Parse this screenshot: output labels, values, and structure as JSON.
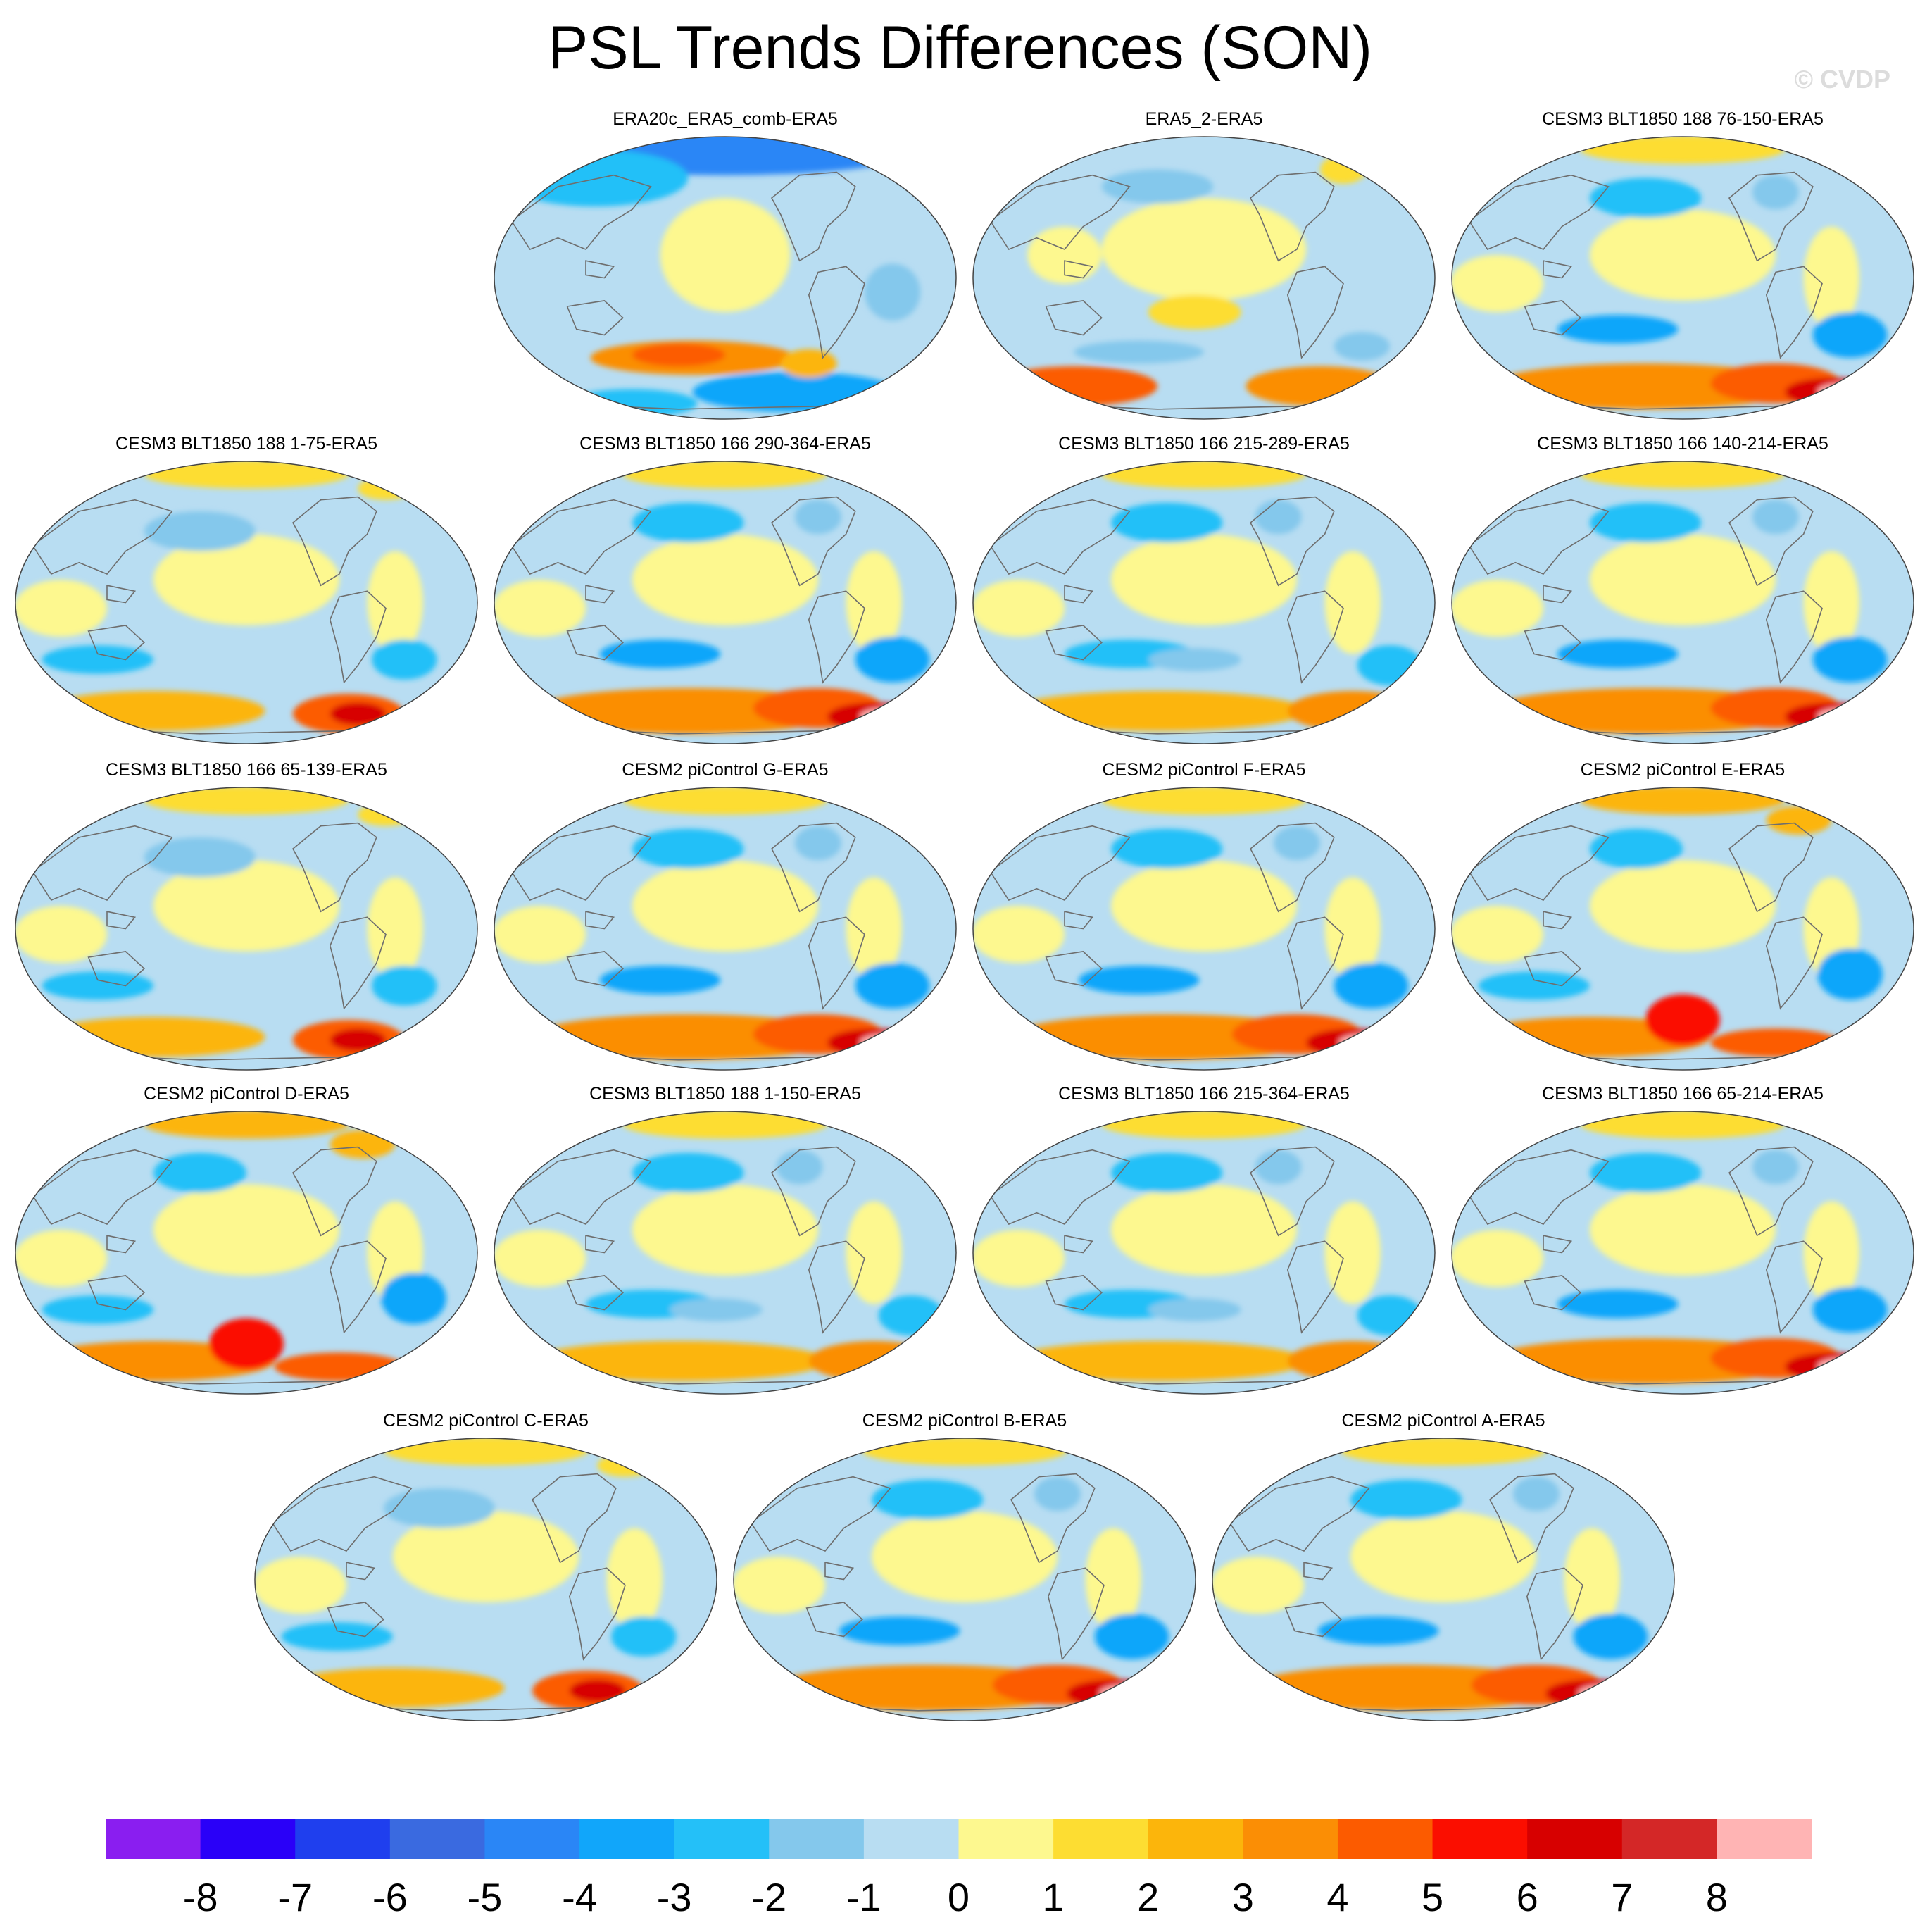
{
  "title": "PSL Trends Differences (SON)",
  "watermark": "© CVDP",
  "chart_data": {
    "type": "heatmap",
    "variable": "PSL",
    "season": "SON",
    "description": "Global maps of sea level pressure trend differences relative to ERA5",
    "panels": [
      {
        "row": 0,
        "col": 1,
        "title": "ERA20c_ERA5_comb-ERA5",
        "pattern": "era20c"
      },
      {
        "row": 0,
        "col": 2,
        "title": "ERA5_2-ERA5",
        "pattern": "era5_2"
      },
      {
        "row": 0,
        "col": 3,
        "title": "CESM3 BLT1850 188 76-150-ERA5",
        "pattern": "model_strong"
      },
      {
        "row": 1,
        "col": 0,
        "title": "CESM3 BLT1850 188 1-75-ERA5",
        "pattern": "model_eastmax"
      },
      {
        "row": 1,
        "col": 1,
        "title": "CESM3 BLT1850 166 290-364-ERA5",
        "pattern": "model_strong"
      },
      {
        "row": 1,
        "col": 2,
        "title": "CESM3 BLT1850 166 215-289-ERA5",
        "pattern": "model"
      },
      {
        "row": 1,
        "col": 3,
        "title": "CESM3 BLT1850 166 140-214-ERA5",
        "pattern": "model_strong"
      },
      {
        "row": 2,
        "col": 0,
        "title": "CESM3 BLT1850 166 65-139-ERA5",
        "pattern": "model_eastmax"
      },
      {
        "row": 2,
        "col": 1,
        "title": "CESM2 piControl G-ERA5",
        "pattern": "model_strong"
      },
      {
        "row": 2,
        "col": 2,
        "title": "CESM2 piControl F-ERA5",
        "pattern": "model_strong"
      },
      {
        "row": 2,
        "col": 3,
        "title": "CESM2 piControl E-ERA5",
        "pattern": "model_central"
      },
      {
        "row": 3,
        "col": 0,
        "title": "CESM2 piControl D-ERA5",
        "pattern": "model_central"
      },
      {
        "row": 3,
        "col": 1,
        "title": "CESM3 BLT1850 188 1-150-ERA5",
        "pattern": "model"
      },
      {
        "row": 3,
        "col": 2,
        "title": "CESM3 BLT1850 166 215-364-ERA5",
        "pattern": "model"
      },
      {
        "row": 3,
        "col": 3,
        "title": "CESM3 BLT1850 166 65-214-ERA5",
        "pattern": "model_strong"
      },
      {
        "row": 4,
        "col": 0.5,
        "title": "CESM2 piControl C-ERA5",
        "pattern": "model_eastmax"
      },
      {
        "row": 4,
        "col": 1.5,
        "title": "CESM2 piControl B-ERA5",
        "pattern": "model_strong"
      },
      {
        "row": 4,
        "col": 2.5,
        "title": "CESM2 piControl A-ERA5",
        "pattern": "model_strong"
      }
    ],
    "colorbar": {
      "levels": [
        -8,
        -7,
        -6,
        -5,
        -4,
        -3,
        -2,
        -1,
        0,
        1,
        2,
        3,
        4,
        5,
        6,
        7,
        8
      ],
      "tick_labels": [
        "-8",
        "-7",
        "-6",
        "-5",
        "-4",
        "-3",
        "-2",
        "-1",
        "0",
        "1",
        "2",
        "3",
        "4",
        "5",
        "6",
        "7",
        "8"
      ],
      "colors": [
        "#8a1ef0",
        "#2a00f8",
        "#1f3fee",
        "#3a6ae0",
        "#2a86f6",
        "#11a6fa",
        "#24c0f8",
        "#84c8ec",
        "#b8ddf2",
        "#fdf88f",
        "#fddd32",
        "#fcb50b",
        "#fb8e05",
        "#fc5b00",
        "#fb0e00",
        "#d70000",
        "#d42727",
        "#ffb4b4"
      ]
    }
  }
}
